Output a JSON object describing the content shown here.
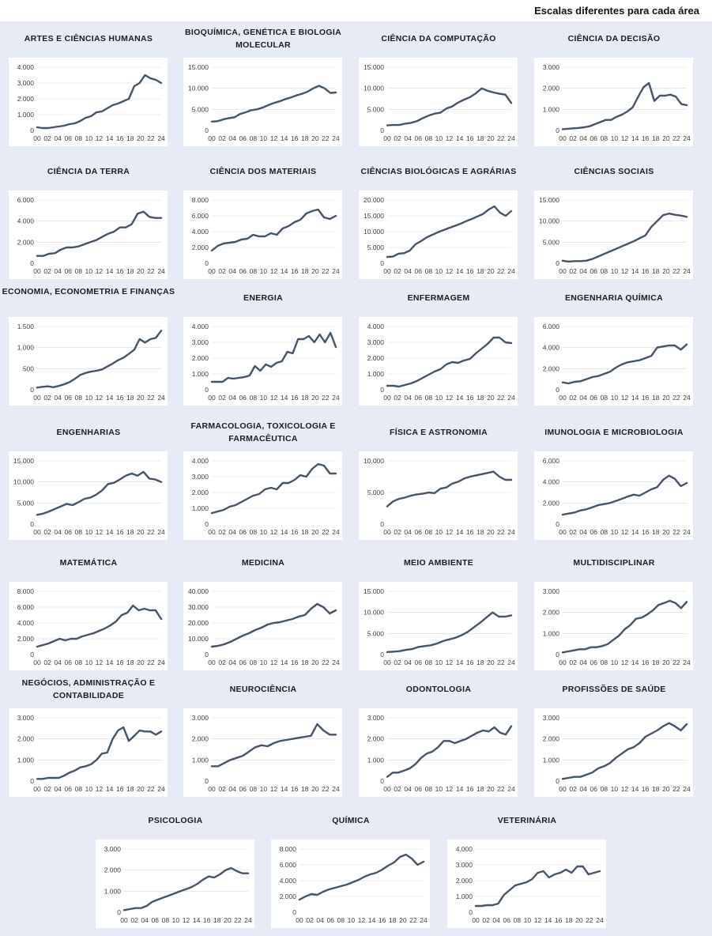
{
  "note": "Escalas diferentes para cada área",
  "style": {
    "line_color": "#44546a",
    "grid_color": "#d9d9d9",
    "background": "#e6ebf5"
  },
  "x_ticks": [
    "00",
    "02",
    "04",
    "06",
    "08",
    "10",
    "12",
    "14",
    "16",
    "18",
    "20",
    "22",
    "24"
  ],
  "chart_data": [
    {
      "type": "line",
      "title": "ARTES E CIÊNCIAS HUMANAS",
      "yticks": [
        0,
        1000,
        2000,
        3000,
        4000
      ],
      "ytick_labels": [
        "0",
        "1.000",
        "2.000",
        "3.000",
        "4.000"
      ],
      "ylim": [
        0,
        4000
      ],
      "values": [
        200,
        150,
        150,
        200,
        250,
        300,
        400,
        450,
        600,
        800,
        900,
        1150,
        1200,
        1400,
        1600,
        1700,
        1850,
        2000,
        2800,
        3000,
        3500,
        3300,
        3200,
        3000
      ]
    },
    {
      "type": "line",
      "title": "BIOQUÍMICA, GENÉTICA E BIOLOGIA MOLECULAR",
      "yticks": [
        0,
        5000,
        10000,
        15000
      ],
      "ytick_labels": [
        "0",
        "5.000",
        "10.000",
        "15.000"
      ],
      "ylim": [
        0,
        15000
      ],
      "values": [
        2100,
        2200,
        2600,
        2900,
        3100,
        3900,
        4300,
        4800,
        5000,
        5400,
        6000,
        6500,
        6900,
        7400,
        7800,
        8300,
        8700,
        9200,
        10000,
        10600,
        10000,
        8900,
        9000
      ]
    },
    {
      "type": "line",
      "title": "CIÊNCIA DA COMPUTAÇÃO",
      "yticks": [
        0,
        5000,
        10000,
        15000
      ],
      "ytick_labels": [
        "0",
        "5.000",
        "10.000",
        "15.000"
      ],
      "ylim": [
        0,
        15000
      ],
      "values": [
        1200,
        1300,
        1300,
        1600,
        1800,
        2200,
        2900,
        3500,
        4000,
        4200,
        5200,
        5700,
        6600,
        7300,
        7900,
        8800,
        10000,
        9400,
        9000,
        8700,
        8500,
        6500
      ]
    },
    {
      "type": "line",
      "title": "CIÊNCIA DA DECISÃO",
      "yticks": [
        0,
        1000,
        2000,
        3000
      ],
      "ytick_labels": [
        "0",
        "1.000",
        "2.000",
        "3.000"
      ],
      "ylim": [
        0,
        3000
      ],
      "values": [
        60,
        80,
        100,
        120,
        150,
        200,
        300,
        400,
        500,
        500,
        650,
        750,
        900,
        1100,
        1600,
        2050,
        2250,
        1400,
        1650,
        1650,
        1700,
        1600,
        1250,
        1200
      ]
    },
    {
      "type": "line",
      "title": "CIÊNCIA DA TERRA",
      "yticks": [
        0,
        2000,
        4000,
        6000
      ],
      "ytick_labels": [
        "0",
        "2.000",
        "4.000",
        "6.000"
      ],
      "ylim": [
        0,
        6000
      ],
      "values": [
        700,
        700,
        900,
        950,
        1300,
        1500,
        1500,
        1600,
        1800,
        2000,
        2200,
        2500,
        2800,
        3000,
        3400,
        3400,
        3700,
        4700,
        4900,
        4400,
        4300,
        4300
      ]
    },
    {
      "type": "line",
      "title": "CIÊNCIA DOS MATERIAIS",
      "yticks": [
        0,
        2000,
        4000,
        6000,
        8000
      ],
      "ytick_labels": [
        "0",
        "2.000",
        "4.000",
        "6.000",
        "8.000"
      ],
      "ylim": [
        0,
        8000
      ],
      "values": [
        1600,
        2200,
        2500,
        2600,
        2700,
        3000,
        3100,
        3600,
        3400,
        3400,
        3800,
        3600,
        4400,
        4700,
        5200,
        5500,
        6300,
        6600,
        6800,
        5800,
        5600,
        6000
      ]
    },
    {
      "type": "line",
      "title": "CIÊNCIAS BIOLÓGICAS E AGRÁRIAS",
      "yticks": [
        0,
        5000,
        10000,
        15000,
        20000
      ],
      "ytick_labels": [
        "0",
        "5.000",
        "10.000",
        "15.000",
        "20.000"
      ],
      "ylim": [
        0,
        20000
      ],
      "values": [
        2000,
        2100,
        3000,
        3200,
        4000,
        6000,
        7000,
        8200,
        9000,
        9800,
        10500,
        11200,
        11800,
        12500,
        13300,
        14000,
        14800,
        15600,
        17000,
        18000,
        16000,
        15000,
        16500
      ]
    },
    {
      "type": "line",
      "title": "CIÊNCIAS SOCIAIS",
      "yticks": [
        0,
        5000,
        10000,
        15000
      ],
      "ytick_labels": [
        "0",
        "5.000",
        "10.000",
        "15.000"
      ],
      "ylim": [
        0,
        15000
      ],
      "values": [
        600,
        400,
        500,
        500,
        600,
        1000,
        1600,
        2200,
        2800,
        3400,
        4000,
        4600,
        5200,
        5900,
        6600,
        8600,
        10000,
        11400,
        11800,
        11500,
        11300,
        11000
      ]
    },
    {
      "type": "line",
      "title": "ECONOMIA, ECONOMETRIA E FINANÇAS",
      "yticks": [
        0,
        500,
        1000,
        1500
      ],
      "ytick_labels": [
        "0",
        "500",
        "1.000",
        "1.500"
      ],
      "ylim": [
        0,
        1500
      ],
      "values": [
        50,
        70,
        80,
        60,
        90,
        130,
        180,
        260,
        350,
        400,
        430,
        450,
        480,
        550,
        620,
        700,
        760,
        850,
        950,
        1200,
        1120,
        1200,
        1230,
        1400
      ]
    },
    {
      "type": "line",
      "title": "ENERGIA",
      "yticks": [
        0,
        1000,
        2000,
        3000,
        4000
      ],
      "ytick_labels": [
        "0",
        "1.000",
        "2.000",
        "3.000",
        "4.000"
      ],
      "ylim": [
        0,
        4000
      ],
      "values": [
        500,
        500,
        500,
        750,
        700,
        750,
        800,
        900,
        1500,
        1200,
        1600,
        1450,
        1700,
        1800,
        2400,
        2300,
        3200,
        3200,
        3400,
        3000,
        3500,
        3000,
        3600,
        2700
      ]
    },
    {
      "type": "line",
      "title": "ENFERMAGEM",
      "yticks": [
        0,
        1000,
        2000,
        3000,
        4000
      ],
      "ytick_labels": [
        "0",
        "1.000",
        "2.000",
        "3.000",
        "4.000"
      ],
      "ylim": [
        0,
        4000
      ],
      "values": [
        250,
        250,
        200,
        300,
        400,
        550,
        750,
        950,
        1150,
        1300,
        1600,
        1750,
        1700,
        1850,
        1950,
        2300,
        2600,
        2900,
        3300,
        3300,
        3000,
        2950
      ]
    },
    {
      "type": "line",
      "title": "ENGENHARIA QUÍMICA",
      "yticks": [
        0,
        2000,
        4000,
        6000
      ],
      "ytick_labels": [
        "0",
        "2.000",
        "4.000",
        "6.000"
      ],
      "ylim": [
        0,
        6000
      ],
      "values": [
        700,
        600,
        750,
        800,
        1000,
        1200,
        1300,
        1500,
        1700,
        2100,
        2400,
        2600,
        2700,
        2800,
        3000,
        3200,
        4000,
        4100,
        4200,
        4200,
        3800,
        4300
      ]
    },
    {
      "type": "line",
      "title": "ENGENHARIAS",
      "yticks": [
        0,
        5000,
        10000,
        15000
      ],
      "ytick_labels": [
        "0",
        "5.000",
        "10.000",
        "15.000"
      ],
      "ylim": [
        0,
        15000
      ],
      "values": [
        2200,
        2500,
        3000,
        3600,
        4200,
        4800,
        4500,
        5200,
        6000,
        6300,
        7000,
        8000,
        9500,
        9800,
        10600,
        11500,
        12000,
        11500,
        12400,
        10800,
        10600,
        10000
      ]
    },
    {
      "type": "line",
      "title": "FARMACOLOGIA, TOXICOLOGIA E FARMACÊUTICA",
      "yticks": [
        0,
        1000,
        2000,
        3000,
        4000
      ],
      "ytick_labels": [
        "0",
        "1.000",
        "2.000",
        "3.000",
        "4.000"
      ],
      "ylim": [
        0,
        4000
      ],
      "values": [
        700,
        800,
        900,
        1100,
        1200,
        1400,
        1600,
        1800,
        1900,
        2200,
        2300,
        2200,
        2600,
        2600,
        2800,
        3100,
        3000,
        3500,
        3800,
        3700,
        3200,
        3200
      ]
    },
    {
      "type": "line",
      "title": "FÍSICA E ASTRONOMIA",
      "yticks": [
        0,
        5000,
        10000
      ],
      "ytick_labels": [
        "0",
        "5.000",
        "10.000"
      ],
      "ylim": [
        0,
        10000
      ],
      "values": [
        2800,
        3600,
        4000,
        4200,
        4500,
        4700,
        4800,
        5000,
        4900,
        5600,
        5800,
        6400,
        6700,
        7200,
        7500,
        7700,
        7900,
        8100,
        8300,
        7500,
        7000,
        7000
      ]
    },
    {
      "type": "line",
      "title": "IMUNOLOGIA E MICROBIOLOGIA",
      "yticks": [
        0,
        2000,
        4000,
        6000
      ],
      "ytick_labels": [
        "0",
        "2.000",
        "4.000",
        "6.000"
      ],
      "ylim": [
        0,
        6000
      ],
      "values": [
        900,
        1000,
        1100,
        1300,
        1400,
        1600,
        1800,
        1900,
        2000,
        2200,
        2400,
        2600,
        2800,
        2700,
        3000,
        3300,
        3500,
        4200,
        4600,
        4300,
        3600,
        3900
      ]
    },
    {
      "type": "line",
      "title": "MATEMÁTICA",
      "yticks": [
        0,
        2000,
        4000,
        6000,
        8000
      ],
      "ytick_labels": [
        "0",
        "2.000",
        "4.000",
        "6.000",
        "8.000"
      ],
      "ylim": [
        0,
        8000
      ],
      "values": [
        1000,
        1200,
        1400,
        1700,
        2000,
        1800,
        2000,
        2000,
        2300,
        2500,
        2700,
        3000,
        3300,
        3700,
        4200,
        5000,
        5300,
        6200,
        5600,
        5800,
        5600,
        5600,
        4500
      ]
    },
    {
      "type": "line",
      "title": "MEDICINA",
      "yticks": [
        0,
        10000,
        20000,
        30000,
        40000
      ],
      "ytick_labels": [
        "0",
        "10.000",
        "20.000",
        "30.000",
        "40.000"
      ],
      "ylim": [
        0,
        40000
      ],
      "values": [
        5000,
        5500,
        6500,
        8000,
        10000,
        12000,
        13500,
        15500,
        17000,
        19000,
        20000,
        20500,
        21500,
        22500,
        24000,
        25000,
        29000,
        32000,
        30000,
        26000,
        28000
      ]
    },
    {
      "type": "line",
      "title": "MEIO AMBIENTE",
      "yticks": [
        0,
        5000,
        10000,
        15000
      ],
      "ytick_labels": [
        "0",
        "5.000",
        "10.000",
        "15.000"
      ],
      "ylim": [
        0,
        15000
      ],
      "values": [
        600,
        700,
        800,
        1100,
        1300,
        1800,
        2000,
        2200,
        2600,
        3200,
        3600,
        4000,
        4600,
        5400,
        6500,
        7600,
        8800,
        10000,
        9000,
        9000,
        9300
      ]
    },
    {
      "type": "line",
      "title": "MULTIDISCIPLINAR",
      "yticks": [
        0,
        1000,
        2000,
        3000
      ],
      "ytick_labels": [
        "0",
        "1.000",
        "2.000",
        "3.000"
      ],
      "ylim": [
        0,
        3000
      ],
      "values": [
        100,
        150,
        200,
        250,
        250,
        350,
        350,
        400,
        500,
        700,
        900,
        1200,
        1400,
        1700,
        1750,
        1900,
        2100,
        2350,
        2450,
        2550,
        2450,
        2200,
        2500
      ]
    },
    {
      "type": "line",
      "title": "NEGÓCIOS, ADMINISTRAÇÃO E CONTABILIDADE",
      "yticks": [
        0,
        1000,
        2000,
        3000
      ],
      "ytick_labels": [
        "0",
        "1.000",
        "2.000",
        "3.000"
      ],
      "ylim": [
        0,
        3000
      ],
      "values": [
        100,
        100,
        150,
        150,
        150,
        250,
        400,
        500,
        650,
        700,
        800,
        1000,
        1300,
        1350,
        2000,
        2400,
        2550,
        1900,
        2150,
        2400,
        2350,
        2350,
        2200,
        2350
      ]
    },
    {
      "type": "line",
      "title": "NEUROCIÊNCIA",
      "yticks": [
        0,
        1000,
        2000,
        3000
      ],
      "ytick_labels": [
        "0",
        "1.000",
        "2.000",
        "3.000"
      ],
      "ylim": [
        0,
        3000
      ],
      "values": [
        700,
        700,
        850,
        1000,
        1100,
        1200,
        1400,
        1600,
        1700,
        1650,
        1800,
        1900,
        1950,
        2000,
        2050,
        2100,
        2150,
        2700,
        2400,
        2200,
        2200
      ]
    },
    {
      "type": "line",
      "title": "ODONTOLOGIA",
      "yticks": [
        0,
        1000,
        2000,
        3000
      ],
      "ytick_labels": [
        "0",
        "1.000",
        "2.000",
        "3.000"
      ],
      "ylim": [
        0,
        3000
      ],
      "values": [
        200,
        400,
        400,
        500,
        600,
        800,
        1100,
        1300,
        1400,
        1600,
        1900,
        1900,
        1800,
        1900,
        2000,
        2150,
        2300,
        2400,
        2350,
        2550,
        2300,
        2200,
        2600
      ]
    },
    {
      "type": "line",
      "title": "PROFISSÕES DE SAÚDE",
      "yticks": [
        0,
        1000,
        2000,
        3000
      ],
      "ytick_labels": [
        "0",
        "1.000",
        "2.000",
        "3.000"
      ],
      "ylim": [
        0,
        3000
      ],
      "values": [
        100,
        150,
        200,
        200,
        300,
        400,
        600,
        700,
        850,
        1100,
        1300,
        1500,
        1600,
        1800,
        2100,
        2250,
        2400,
        2600,
        2750,
        2600,
        2400,
        2700
      ]
    },
    {
      "type": "line",
      "title": "PSICOLOGIA",
      "yticks": [
        0,
        1000,
        2000,
        3000
      ],
      "ytick_labels": [
        "0",
        "1.000",
        "2.000",
        "3.000"
      ],
      "ylim": [
        0,
        3000
      ],
      "values": [
        100,
        150,
        200,
        200,
        300,
        500,
        600,
        700,
        800,
        900,
        1000,
        1100,
        1200,
        1350,
        1550,
        1700,
        1650,
        1800,
        2000,
        2100,
        1950,
        1850,
        1850
      ]
    },
    {
      "type": "line",
      "title": "QUÍMICA",
      "yticks": [
        0,
        2000,
        4000,
        6000,
        8000
      ],
      "ytick_labels": [
        "0",
        "2.000",
        "4.000",
        "6.000",
        "8.000"
      ],
      "ylim": [
        0,
        8000
      ],
      "values": [
        1600,
        2000,
        2300,
        2200,
        2600,
        2900,
        3100,
        3300,
        3500,
        3800,
        4100,
        4500,
        4800,
        5000,
        5400,
        5900,
        6300,
        7000,
        7300,
        6800,
        6000,
        6400
      ]
    },
    {
      "type": "line",
      "title": "VETERINÁRIA",
      "yticks": [
        0,
        1000,
        2000,
        3000,
        4000
      ],
      "ytick_labels": [
        "0",
        "1.000",
        "2.000",
        "3.000",
        "4.000"
      ],
      "ylim": [
        0,
        4000
      ],
      "values": [
        400,
        400,
        450,
        450,
        550,
        1100,
        1400,
        1700,
        1800,
        1900,
        2100,
        2500,
        2600,
        2200,
        2400,
        2500,
        2700,
        2500,
        2900,
        2900,
        2400,
        2500,
        2600
      ]
    }
  ]
}
